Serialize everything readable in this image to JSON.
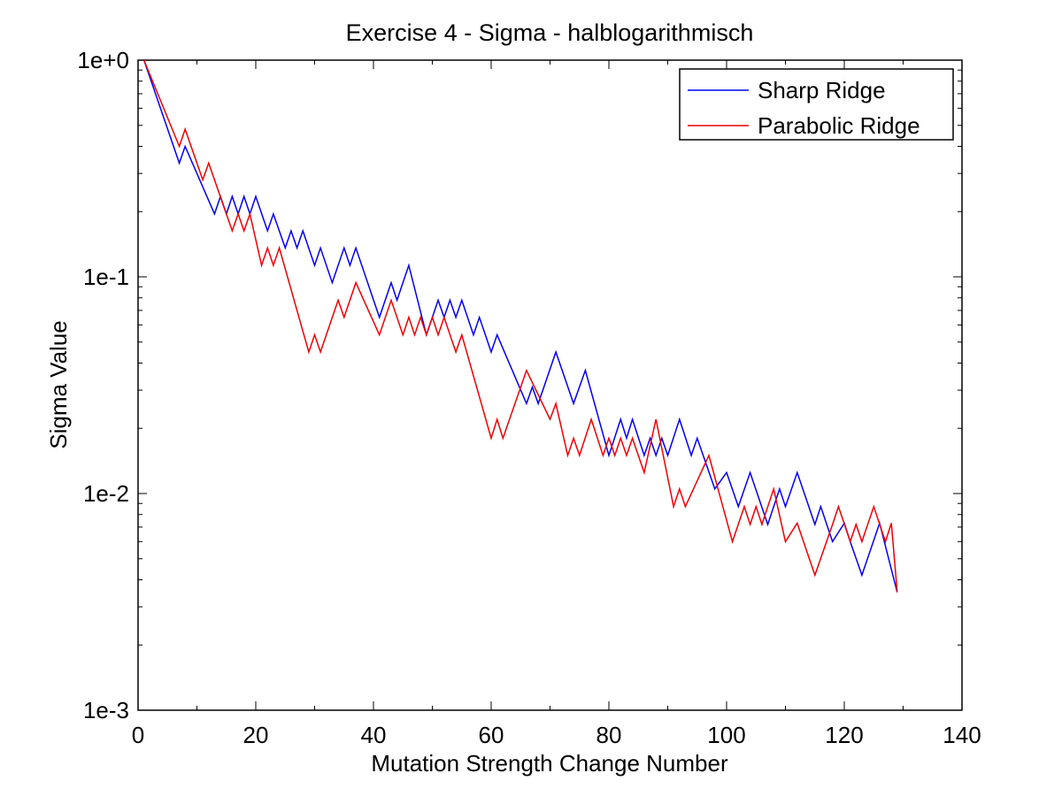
{
  "chart_data": {
    "type": "line",
    "title": "Exercise 4 - Sigma - halblogarithmisch",
    "xlabel": "Mutation Strength Change Number",
    "ylabel": "Sigma Value",
    "xlim": [
      0,
      140
    ],
    "ylim": [
      0.001,
      1
    ],
    "yscale": "log",
    "grid": false,
    "legend_position": "top-right",
    "x_ticks": [
      0,
      20,
      40,
      60,
      80,
      100,
      120,
      140
    ],
    "x_tick_labels": [
      "0",
      "20",
      "40",
      "60",
      "80",
      "100",
      "120",
      "140"
    ],
    "y_ticks": [
      1,
      0.1,
      0.01,
      0.001
    ],
    "y_tick_labels": [
      "1e+0",
      "1e-1",
      "1e-2",
      "1e-3"
    ],
    "series": [
      {
        "name": "Sharp Ridge",
        "color": "#0000ee",
        "points": [
          [
            1,
            1.0
          ],
          [
            7,
            0.335
          ],
          [
            8,
            0.4
          ],
          [
            10,
            0.3
          ],
          [
            13,
            0.195
          ],
          [
            14,
            0.235
          ],
          [
            15,
            0.195
          ],
          [
            16,
            0.235
          ],
          [
            17,
            0.195
          ],
          [
            18,
            0.235
          ],
          [
            19,
            0.195
          ],
          [
            20,
            0.235
          ],
          [
            22,
            0.163
          ],
          [
            23,
            0.195
          ],
          [
            25,
            0.136
          ],
          [
            26,
            0.163
          ],
          [
            27,
            0.136
          ],
          [
            28,
            0.163
          ],
          [
            30,
            0.113
          ],
          [
            31,
            0.136
          ],
          [
            33,
            0.094
          ],
          [
            35,
            0.136
          ],
          [
            36,
            0.113
          ],
          [
            37,
            0.136
          ],
          [
            41,
            0.065
          ],
          [
            43,
            0.094
          ],
          [
            44,
            0.078
          ],
          [
            46,
            0.113
          ],
          [
            49,
            0.054
          ],
          [
            51,
            0.078
          ],
          [
            52,
            0.065
          ],
          [
            53,
            0.078
          ],
          [
            54,
            0.065
          ],
          [
            55,
            0.078
          ],
          [
            57,
            0.054
          ],
          [
            58,
            0.065
          ],
          [
            60,
            0.045
          ],
          [
            61,
            0.054
          ],
          [
            66,
            0.026
          ],
          [
            67,
            0.031
          ],
          [
            68,
            0.026
          ],
          [
            71,
            0.045
          ],
          [
            74,
            0.026
          ],
          [
            76,
            0.037
          ],
          [
            80,
            0.015
          ],
          [
            82,
            0.022
          ],
          [
            83,
            0.018
          ],
          [
            84,
            0.022
          ],
          [
            86,
            0.015
          ],
          [
            87,
            0.018
          ],
          [
            88,
            0.015
          ],
          [
            89,
            0.018
          ],
          [
            90,
            0.015
          ],
          [
            92,
            0.022
          ],
          [
            94,
            0.015
          ],
          [
            95,
            0.018
          ],
          [
            98,
            0.0105
          ],
          [
            100,
            0.0125
          ],
          [
            102,
            0.0087
          ],
          [
            104,
            0.0125
          ],
          [
            107,
            0.0072
          ],
          [
            109,
            0.0105
          ],
          [
            110,
            0.0087
          ],
          [
            112,
            0.0125
          ],
          [
            115,
            0.0072
          ],
          [
            116,
            0.0087
          ],
          [
            118,
            0.006
          ],
          [
            120,
            0.0073
          ],
          [
            121,
            0.006
          ],
          [
            123,
            0.0042
          ],
          [
            126,
            0.0073
          ],
          [
            129,
            0.0035
          ]
        ]
      },
      {
        "name": "Parabolic Ridge",
        "color": "#ee0000",
        "points": [
          [
            1,
            1.0
          ],
          [
            7,
            0.4
          ],
          [
            8,
            0.48
          ],
          [
            11,
            0.28
          ],
          [
            12,
            0.335
          ],
          [
            16,
            0.163
          ],
          [
            17,
            0.195
          ],
          [
            18,
            0.163
          ],
          [
            19,
            0.195
          ],
          [
            21,
            0.113
          ],
          [
            22,
            0.136
          ],
          [
            23,
            0.113
          ],
          [
            24,
            0.136
          ],
          [
            29,
            0.045
          ],
          [
            30,
            0.054
          ],
          [
            31,
            0.045
          ],
          [
            34,
            0.078
          ],
          [
            35,
            0.065
          ],
          [
            37,
            0.094
          ],
          [
            41,
            0.054
          ],
          [
            43,
            0.078
          ],
          [
            45,
            0.054
          ],
          [
            46,
            0.065
          ],
          [
            47,
            0.054
          ],
          [
            48,
            0.065
          ],
          [
            49,
            0.054
          ],
          [
            50,
            0.065
          ],
          [
            51,
            0.054
          ],
          [
            52,
            0.065
          ],
          [
            54,
            0.045
          ],
          [
            55,
            0.054
          ],
          [
            60,
            0.018
          ],
          [
            61,
            0.022
          ],
          [
            62,
            0.018
          ],
          [
            66,
            0.037
          ],
          [
            70,
            0.022
          ],
          [
            71,
            0.026
          ],
          [
            73,
            0.015
          ],
          [
            74,
            0.018
          ],
          [
            75,
            0.015
          ],
          [
            77,
            0.022
          ],
          [
            79,
            0.015
          ],
          [
            80,
            0.018
          ],
          [
            81,
            0.015
          ],
          [
            82,
            0.018
          ],
          [
            83,
            0.015
          ],
          [
            84,
            0.018
          ],
          [
            86,
            0.0125
          ],
          [
            88,
            0.022
          ],
          [
            91,
            0.0087
          ],
          [
            92,
            0.0105
          ],
          [
            93,
            0.0087
          ],
          [
            97,
            0.015
          ],
          [
            101,
            0.006
          ],
          [
            103,
            0.0087
          ],
          [
            104,
            0.0072
          ],
          [
            105,
            0.0087
          ],
          [
            106,
            0.0072
          ],
          [
            108,
            0.0105
          ],
          [
            110,
            0.006
          ],
          [
            112,
            0.0073
          ],
          [
            115,
            0.0042
          ],
          [
            118,
            0.0072
          ],
          [
            119,
            0.0087
          ],
          [
            121,
            0.006
          ],
          [
            122,
            0.0072
          ],
          [
            123,
            0.006
          ],
          [
            125,
            0.0087
          ],
          [
            127,
            0.006
          ],
          [
            128,
            0.0073
          ],
          [
            129,
            0.0035
          ]
        ]
      }
    ]
  }
}
